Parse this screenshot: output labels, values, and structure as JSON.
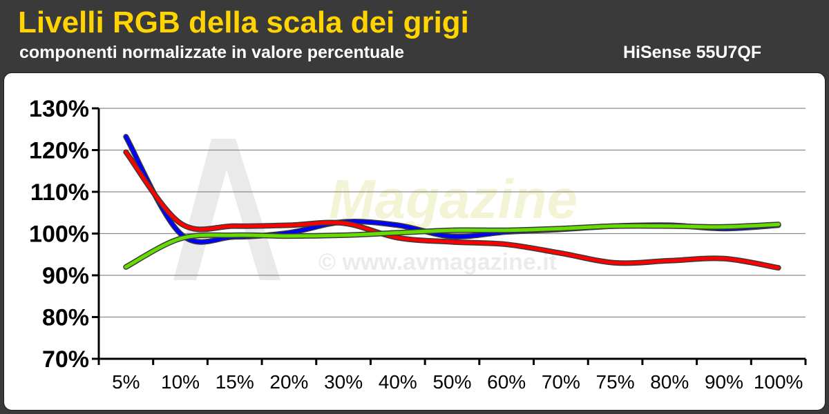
{
  "header": {
    "title": "Livelli RGB della scala dei grigi",
    "subtitle": "componenti normalizzate in valore percentuale",
    "model": "HiSense 55U7QF"
  },
  "watermark": {
    "brand": "Magazine",
    "url": "© www.avmagazine.it"
  },
  "chart_data": {
    "type": "line",
    "title": "Livelli RGB della scala dei grigi",
    "subtitle": "componenti normalizzate in valore percentuale",
    "xlabel": "",
    "ylabel": "",
    "categories": [
      "5%",
      "10%",
      "15%",
      "20%",
      "30%",
      "40%",
      "50%",
      "60%",
      "70%",
      "75%",
      "80%",
      "90%",
      "100%"
    ],
    "yticks": [
      "130%",
      "120%",
      "110%",
      "100%",
      "90%",
      "80%",
      "70%"
    ],
    "ylim": [
      70,
      130
    ],
    "grid": true,
    "legend": "none",
    "series": [
      {
        "color": "#0000ff",
        "values": [
          123.2,
          100.0,
          99.2,
          100.2,
          102.8,
          102.0,
          99.3,
          100.4,
          101.0,
          101.8,
          102.0,
          101.2,
          102.0
        ]
      },
      {
        "color": "#ff0000",
        "values": [
          119.5,
          102.5,
          101.8,
          102.0,
          102.5,
          99.0,
          98.0,
          97.4,
          95.3,
          93.0,
          93.5,
          94.0,
          91.8
        ]
      },
      {
        "color": "#66dd00",
        "values": [
          92.0,
          98.8,
          99.6,
          99.4,
          99.6,
          100.2,
          100.8,
          100.8,
          101.2,
          101.8,
          101.8,
          101.6,
          102.2
        ]
      }
    ]
  }
}
